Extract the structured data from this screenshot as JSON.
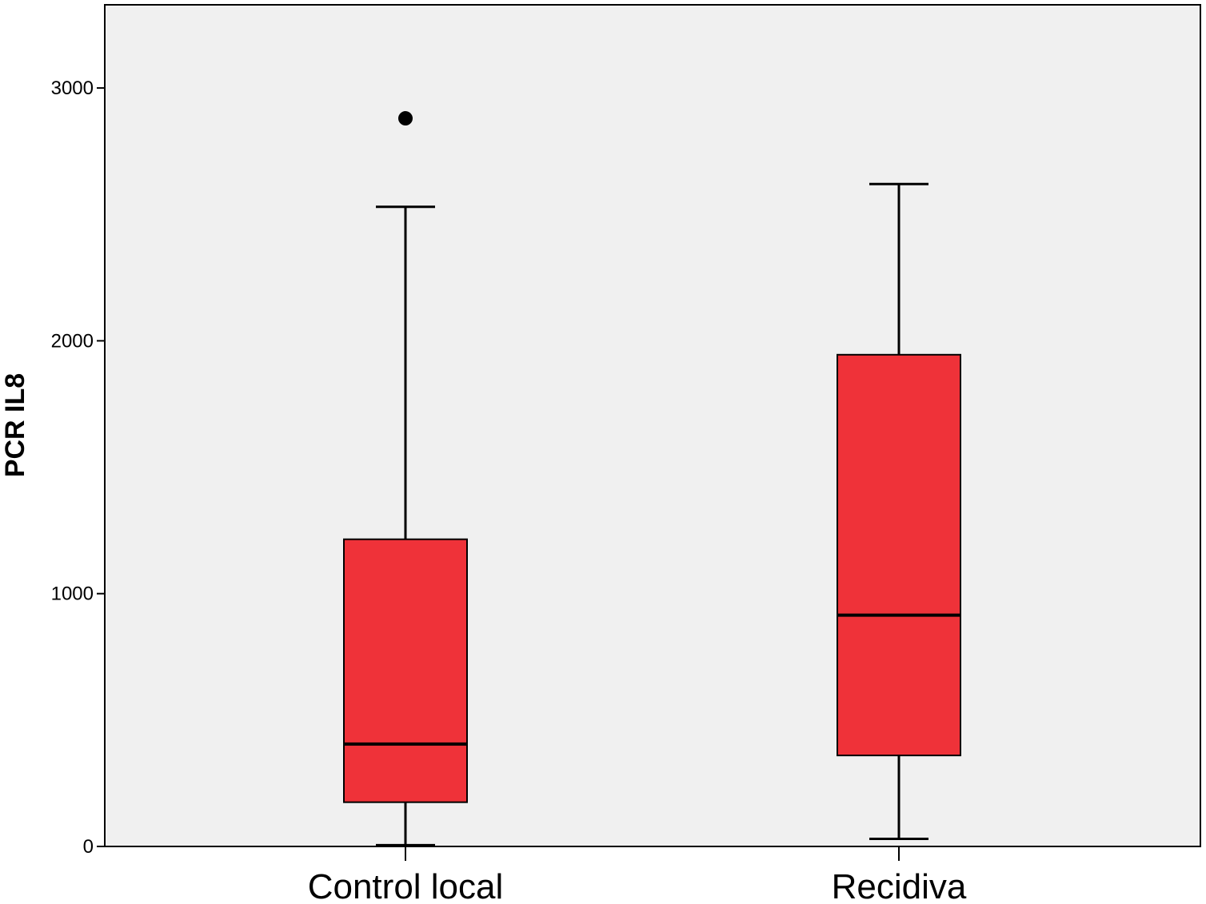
{
  "chart_data": {
    "type": "boxplot",
    "ylabel": "PCR IL8",
    "xlabel": "",
    "ylim": [
      0,
      3300
    ],
    "yticks": [
      "0",
      "1000",
      "2000",
      "3000"
    ],
    "categories": [
      "Control local",
      "Recidiva"
    ],
    "boxes": [
      {
        "category": "Control local",
        "whisker_low": 5,
        "q1": 175,
        "median": 405,
        "q3": 1215,
        "whisker_high": 2530,
        "outliers": [
          2880
        ]
      },
      {
        "category": "Recidiva",
        "whisker_low": 30,
        "q1": 360,
        "median": 915,
        "q3": 1945,
        "whisker_high": 2620,
        "outliers": []
      }
    ],
    "box_color": "#ef3239",
    "plot_background": "#f0f0f0",
    "grid": false,
    "legend": "none"
  }
}
